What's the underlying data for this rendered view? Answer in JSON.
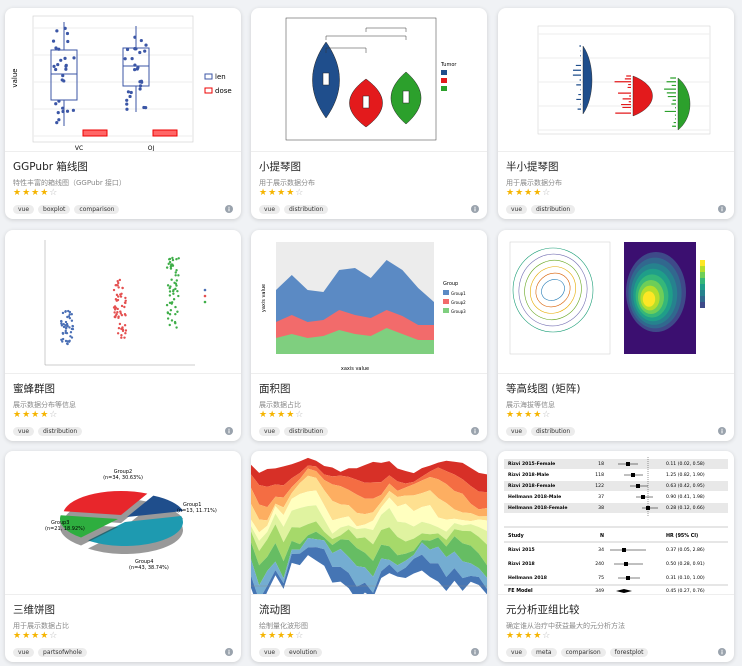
{
  "cards": [
    {
      "title": "GGPubr 箱线图",
      "description": "特性丰富的箱线图（GGPubr 接口）",
      "stars_filled": "★★★★",
      "stars_empty": "☆",
      "tags": [
        "vue",
        "boxplot",
        "comparison"
      ],
      "thumb": {
        "y_label": "value",
        "categories": [
          "VC",
          "OJ"
        ],
        "legend": [
          "len",
          "dose"
        ]
      }
    },
    {
      "title": "小提琴图",
      "description": "用于展示数据分布",
      "stars_filled": "★★★★",
      "stars_empty": "☆",
      "tags": [
        "vue",
        "distribution"
      ],
      "thumb": {
        "legend_title": "Tumor"
      }
    },
    {
      "title": "半小提琴图",
      "description": "用于展示数据分布",
      "stars_filled": "★★★★",
      "stars_empty": "☆",
      "tags": [
        "vue",
        "distribution"
      ],
      "thumb": {}
    },
    {
      "title": "蜜蜂群图",
      "description": "展示数据分布等信息",
      "stars_filled": "★★★★",
      "stars_empty": "☆",
      "tags": [
        "vue",
        "distribution"
      ],
      "thumb": {}
    },
    {
      "title": "面积图",
      "description": "展示数据占比",
      "stars_filled": "★★★★",
      "stars_empty": "☆",
      "tags": [
        "vue",
        "distribution"
      ],
      "thumb": {
        "legend_title": "Group",
        "legend": [
          "Group1",
          "Group2",
          "Group3"
        ],
        "x_label": "xaxis value",
        "y_label": "yaxis value"
      }
    },
    {
      "title": "等高线图 (矩阵)",
      "description": "展示海拔等信息",
      "stars_filled": "★★★★",
      "stars_empty": "☆",
      "tags": [
        "vue",
        "distribution"
      ],
      "thumb": {}
    },
    {
      "title": "三维饼图",
      "description": "用于展示数据占比",
      "stars_filled": "★★★★",
      "stars_empty": "☆",
      "tags": [
        "vue",
        "partsofwhole"
      ],
      "thumb": {
        "labels": [
          [
            "Group2",
            "(n=34, 30.63%)"
          ],
          [
            "Group1",
            "(n=13, 11.71%)"
          ],
          [
            "Group3",
            "(n=21, 18.92%)"
          ],
          [
            "Group4",
            "(n=43, 38.74%)"
          ]
        ]
      }
    },
    {
      "title": "流动图",
      "description": "绘制量化波形图",
      "stars_filled": "★★★★",
      "stars_empty": "☆",
      "tags": [
        "vue",
        "evolution"
      ],
      "thumb": {}
    },
    {
      "title": "元分析亚组比较",
      "description": "确定谁从治疗中获益最大的元分析方法",
      "stars_filled": "★★★★",
      "stars_empty": "☆",
      "tags": [
        "vue",
        "meta",
        "comparison",
        "forestplot"
      ],
      "thumb": {
        "rows": [
          [
            "Rizvi 2015-Female",
            "18",
            "0.11 (0.02, 0.58)"
          ],
          [
            "Rizvi 2018-Male",
            "118",
            "1.25 (0.82, 1.90)"
          ],
          [
            "Rizvi 2018-Female",
            "122",
            "0.63 (0.42, 0.95)"
          ],
          [
            "Hellmann 2018-Male",
            "37",
            "0.90 (0.41, 1.98)"
          ],
          [
            "Hellmann 2018-Female",
            "38",
            "0.28 (0.12, 0.66)"
          ]
        ],
        "header": [
          "Study",
          "N",
          "HR (95% CI)"
        ],
        "rows2": [
          [
            "Rizvi 2015",
            "34",
            "0.37 (0.05, 2.86)"
          ],
          [
            "Rizvi 2018",
            "240",
            "0.50 (0.28, 0.91)"
          ],
          [
            "Hellmann 2018",
            "75",
            "0.31 (0.10, 1.00)"
          ]
        ],
        "total": [
          "FE Model",
          "349",
          "0.45 (0.27, 0.76)"
        ]
      }
    }
  ]
}
